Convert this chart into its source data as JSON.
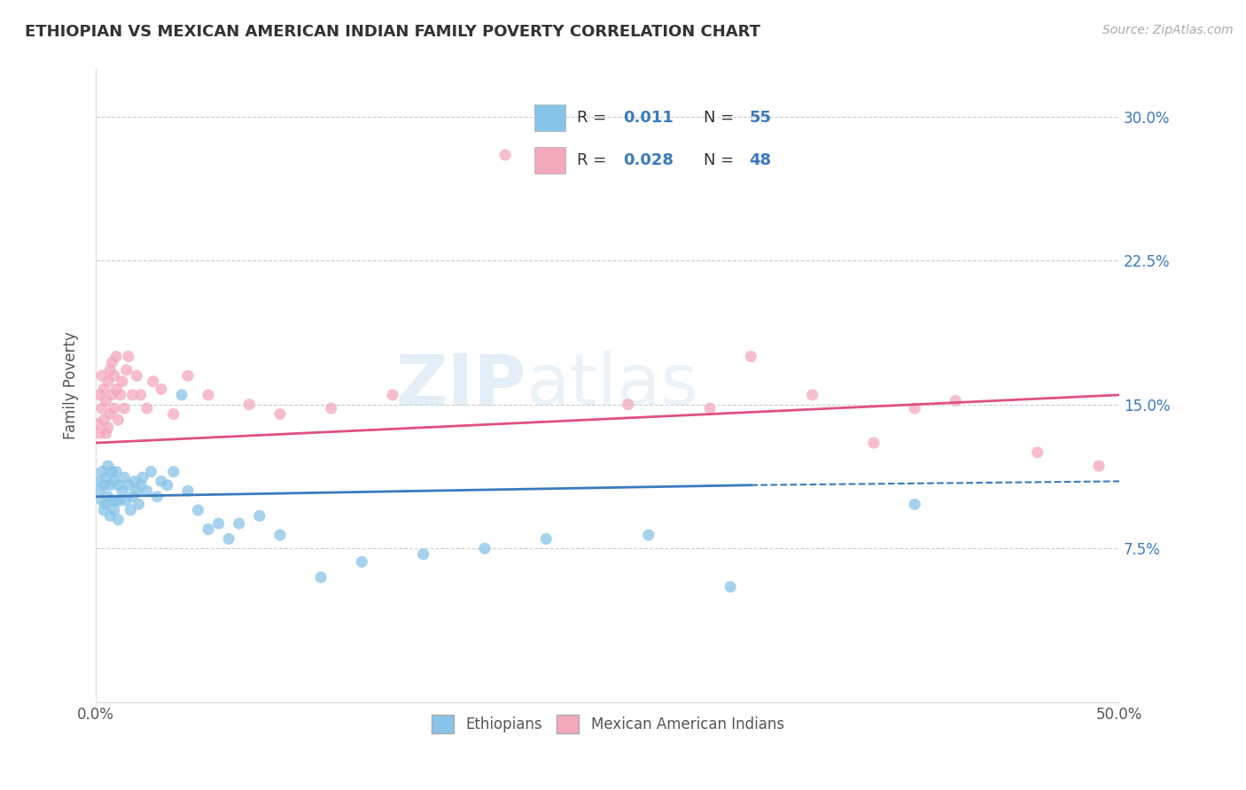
{
  "title": "ETHIOPIAN VS MEXICAN AMERICAN INDIAN FAMILY POVERTY CORRELATION CHART",
  "source": "Source: ZipAtlas.com",
  "ylabel": "Family Poverty",
  "xlim": [
    0.0,
    0.5
  ],
  "ylim": [
    -0.005,
    0.325
  ],
  "xticks": [
    0.0,
    0.5
  ],
  "xticklabels": [
    "0.0%",
    "50.0%"
  ],
  "yticks": [
    0.075,
    0.15,
    0.225,
    0.3
  ],
  "yticklabels": [
    "7.5%",
    "15.0%",
    "22.5%",
    "30.0%"
  ],
  "color_blue": "#88c4e8",
  "color_pink": "#f4a8bc",
  "color_blue_line": "#3a7abf",
  "color_pink_line": "#e05080",
  "watermark": "ZIPatlas",
  "ethiopians_x": [
    0.001,
    0.002,
    0.003,
    0.003,
    0.004,
    0.004,
    0.005,
    0.005,
    0.006,
    0.006,
    0.007,
    0.007,
    0.008,
    0.008,
    0.009,
    0.009,
    0.01,
    0.01,
    0.011,
    0.011,
    0.012,
    0.013,
    0.014,
    0.015,
    0.016,
    0.017,
    0.018,
    0.019,
    0.02,
    0.021,
    0.022,
    0.023,
    0.025,
    0.027,
    0.03,
    0.032,
    0.035,
    0.038,
    0.042,
    0.045,
    0.05,
    0.055,
    0.06,
    0.065,
    0.07,
    0.08,
    0.09,
    0.11,
    0.13,
    0.16,
    0.19,
    0.22,
    0.27,
    0.31,
    0.4
  ],
  "ethiopians_y": [
    0.11,
    0.105,
    0.1,
    0.115,
    0.095,
    0.108,
    0.098,
    0.112,
    0.102,
    0.118,
    0.092,
    0.108,
    0.1,
    0.115,
    0.095,
    0.11,
    0.1,
    0.115,
    0.09,
    0.108,
    0.1,
    0.105,
    0.112,
    0.1,
    0.108,
    0.095,
    0.102,
    0.11,
    0.105,
    0.098,
    0.108,
    0.112,
    0.105,
    0.115,
    0.102,
    0.11,
    0.108,
    0.115,
    0.155,
    0.105,
    0.095,
    0.085,
    0.088,
    0.08,
    0.088,
    0.092,
    0.082,
    0.06,
    0.068,
    0.072,
    0.075,
    0.08,
    0.082,
    0.055,
    0.098
  ],
  "mexican_x": [
    0.001,
    0.002,
    0.002,
    0.003,
    0.003,
    0.004,
    0.004,
    0.005,
    0.005,
    0.006,
    0.006,
    0.007,
    0.007,
    0.008,
    0.008,
    0.009,
    0.009,
    0.01,
    0.01,
    0.011,
    0.012,
    0.013,
    0.014,
    0.015,
    0.016,
    0.018,
    0.02,
    0.022,
    0.025,
    0.028,
    0.032,
    0.038,
    0.045,
    0.055,
    0.075,
    0.09,
    0.115,
    0.145,
    0.2,
    0.26,
    0.3,
    0.32,
    0.35,
    0.38,
    0.4,
    0.42,
    0.46,
    0.49
  ],
  "mexican_y": [
    0.14,
    0.155,
    0.135,
    0.148,
    0.165,
    0.142,
    0.158,
    0.135,
    0.152,
    0.138,
    0.162,
    0.145,
    0.168,
    0.155,
    0.172,
    0.148,
    0.165,
    0.158,
    0.175,
    0.142,
    0.155,
    0.162,
    0.148,
    0.168,
    0.175,
    0.155,
    0.165,
    0.155,
    0.148,
    0.162,
    0.158,
    0.145,
    0.165,
    0.155,
    0.15,
    0.145,
    0.148,
    0.155,
    0.28,
    0.15,
    0.148,
    0.175,
    0.155,
    0.13,
    0.148,
    0.152,
    0.125,
    0.118
  ]
}
